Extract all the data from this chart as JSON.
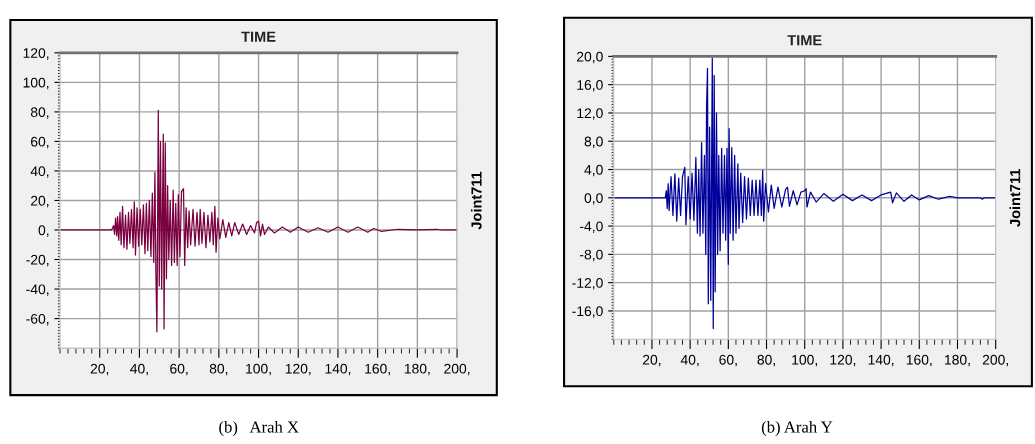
{
  "chart_data": [
    {
      "type": "line",
      "title": "TIME",
      "ylabel": "Joint711",
      "annotations": [
        "(b)   Arah X"
      ],
      "grid": true,
      "marker": "none",
      "line_style": "solid",
      "xlim": [
        0,
        200
      ],
      "xticks": [
        {
          "value": 20,
          "label": "20,"
        },
        {
          "value": 40,
          "label": "40,"
        },
        {
          "value": 60,
          "label": "60,"
        },
        {
          "value": 80,
          "label": "80,"
        },
        {
          "value": 100,
          "label": "100,"
        },
        {
          "value": 120,
          "label": "120,"
        },
        {
          "value": 140,
          "label": "140,"
        },
        {
          "value": 160,
          "label": "160,"
        },
        {
          "value": 180,
          "label": "180,"
        },
        {
          "value": 200,
          "label": "200,"
        }
      ],
      "ylim": [
        -80,
        120
      ],
      "yticks": [
        {
          "value": -60,
          "label": "-60,"
        },
        {
          "value": -40,
          "label": "-40,"
        },
        {
          "value": -20,
          "label": "-20,"
        },
        {
          "value": 0,
          "label": "0,"
        },
        {
          "value": 20,
          "label": "20,"
        },
        {
          "value": 40,
          "label": "40,"
        },
        {
          "value": 60,
          "label": "60,"
        },
        {
          "value": 80,
          "label": "80,"
        },
        {
          "value": 100,
          "label": "100,"
        },
        {
          "value": 120,
          "label": "120,"
        }
      ],
      "series": [
        {
          "color": "#7a0040",
          "x": [
            0,
            26,
            27,
            27.5,
            28,
            28.6,
            29,
            29.6,
            30.2,
            30.8,
            31.5,
            32.2,
            33,
            33.7,
            34.5,
            35.2,
            36,
            36.8,
            37.4,
            38,
            38.8,
            39.6,
            40.4,
            41.2,
            42,
            42.8,
            43.5,
            44.2,
            45,
            45.8,
            46.5,
            47.2,
            47.8,
            48.3,
            48.8,
            49.5,
            50,
            50.6,
            51.2,
            52,
            52.4,
            53,
            53.6,
            54.2,
            54.8,
            55.5,
            56.2,
            57,
            57.6,
            58.3,
            59,
            59.6,
            60.4,
            61.2,
            62.2,
            62.8,
            63.5,
            64.3,
            65,
            65.8,
            67,
            68,
            69,
            70,
            70.6,
            71.5,
            72.5,
            73.5,
            74.5,
            75.5,
            76.5,
            77.2,
            78,
            78.6,
            79.5,
            80.5,
            82,
            83.5,
            85,
            86.5,
            88,
            90,
            92,
            94,
            96,
            98,
            99,
            100,
            101,
            102,
            103,
            105,
            108,
            112,
            116,
            120,
            125,
            130,
            135,
            140,
            145,
            150,
            155,
            158,
            162,
            170,
            180,
            190,
            192,
            200
          ],
          "values": [
            0,
            0,
            3,
            -3,
            8,
            -4,
            9,
            -7,
            12,
            -10,
            16,
            -12,
            10,
            -13,
            12,
            -9,
            14,
            -12,
            19,
            -17,
            15,
            -11,
            14,
            -10,
            17,
            -16,
            18,
            -14,
            20,
            -18,
            25,
            -22,
            39,
            -30,
            -69,
            81,
            -38,
            60,
            -40,
            65,
            -67,
            59,
            -33,
            30,
            -20,
            20,
            -24,
            27,
            -22,
            18,
            -24,
            24,
            -18,
            26,
            28,
            -24,
            15,
            -12,
            13,
            -10,
            14,
            -11,
            12,
            -10,
            14,
            -9,
            12,
            -12,
            10,
            -8,
            12,
            -10,
            16,
            -15,
            8,
            -6,
            7,
            -5,
            5,
            -4,
            5,
            -3,
            4,
            -3,
            3,
            -2,
            5,
            6,
            -4,
            4,
            -3,
            2,
            -2,
            2,
            -1.5,
            2,
            -1.5,
            1.5,
            -1.5,
            2,
            -1.5,
            2,
            -1.5,
            1,
            -1,
            0.5,
            0,
            0.5,
            0,
            0
          ]
        }
      ]
    },
    {
      "type": "line",
      "title": "TIME",
      "ylabel": "Joint711",
      "annotations": [
        "(b) Arah Y"
      ],
      "grid": true,
      "marker": "none",
      "line_style": "solid",
      "xlim": [
        0,
        200
      ],
      "xticks": [
        {
          "value": 20,
          "label": "20,"
        },
        {
          "value": 40,
          "label": "40,"
        },
        {
          "value": 60,
          "label": "60,"
        },
        {
          "value": 80,
          "label": "80,"
        },
        {
          "value": 100,
          "label": "100,"
        },
        {
          "value": 120,
          "label": "120,"
        },
        {
          "value": 140,
          "label": "140,"
        },
        {
          "value": 160,
          "label": "160,"
        },
        {
          "value": 180,
          "label": "180,"
        },
        {
          "value": 200,
          "label": "200,"
        }
      ],
      "ylim": [
        -20,
        20
      ],
      "yticks": [
        {
          "value": -16,
          "label": "-16,0"
        },
        {
          "value": -12,
          "label": "-12,0"
        },
        {
          "value": -8,
          "label": "-8,0"
        },
        {
          "value": -4,
          "label": "-4,0"
        },
        {
          "value": 0,
          "label": "0,0"
        },
        {
          "value": 4,
          "label": "4,0"
        },
        {
          "value": 8,
          "label": "8,0"
        },
        {
          "value": 12,
          "label": "12,0"
        },
        {
          "value": 16,
          "label": "16,0"
        },
        {
          "value": 20,
          "label": "20,0"
        }
      ],
      "series": [
        {
          "color": "#00009c",
          "x": [
            0,
            27,
            27.5,
            28,
            28.5,
            29,
            30,
            31,
            32,
            33,
            34,
            35,
            36,
            37.2,
            37.8,
            39,
            40,
            41,
            42,
            43,
            43.8,
            44.5,
            45.2,
            46,
            46.7,
            47.5,
            48.2,
            48.6,
            49.1,
            49.5,
            50.2,
            50.8,
            51.6,
            52.1,
            52.6,
            53.1,
            53.8,
            54.4,
            55,
            55.7,
            56.5,
            57.2,
            58,
            58.6,
            59.3,
            60,
            60.4,
            61,
            61.8,
            62.5,
            63.3,
            64,
            65,
            65.6,
            66.5,
            67.5,
            68.5,
            69.5,
            70.5,
            71.5,
            72.5,
            73.5,
            74.5,
            75.5,
            76.5,
            77.3,
            78,
            78.5,
            79.5,
            81,
            82.5,
            84,
            86,
            88,
            90,
            91,
            92,
            94,
            96,
            98,
            100,
            100.7,
            101.2,
            103,
            106,
            110,
            115,
            120,
            125,
            130,
            135,
            140,
            145,
            146,
            148,
            152,
            156,
            160,
            165,
            170,
            176,
            180,
            192,
            193,
            194,
            200
          ],
          "values": [
            0,
            0,
            1,
            -1.5,
            2,
            -1.8,
            3,
            -2.5,
            3.4,
            -3.3,
            2.8,
            -2.5,
            3,
            4.3,
            -3.8,
            3,
            -3,
            3.5,
            -3.2,
            5.7,
            -5,
            4,
            -5.4,
            7.8,
            -5,
            6,
            -8,
            12.9,
            18.3,
            -15,
            10,
            -14.5,
            19.8,
            -18.5,
            17.3,
            -13.3,
            12,
            -8,
            6,
            -7.5,
            7,
            -5,
            6,
            -6,
            7,
            -9.4,
            9.8,
            -5,
            7.1,
            -6,
            6,
            -5,
            4.8,
            -4.3,
            3.5,
            -3.5,
            3,
            -3,
            2.8,
            -2.5,
            2.5,
            -2.5,
            2.5,
            -2.5,
            2.5,
            -2.5,
            3.9,
            -3.3,
            2,
            -2,
            1.8,
            -1.5,
            1.5,
            -1.3,
            1.2,
            1.5,
            -1.2,
            1,
            -1,
            0.8,
            1,
            1.3,
            -1.3,
            0.8,
            -0.6,
            0.6,
            -0.5,
            0.5,
            -0.4,
            0.4,
            -0.4,
            0.4,
            0.8,
            -0.7,
            0.7,
            -0.5,
            0.4,
            -0.3,
            0.3,
            -0.2,
            0.2,
            0,
            0,
            -0.2,
            0,
            0
          ]
        }
      ]
    }
  ]
}
